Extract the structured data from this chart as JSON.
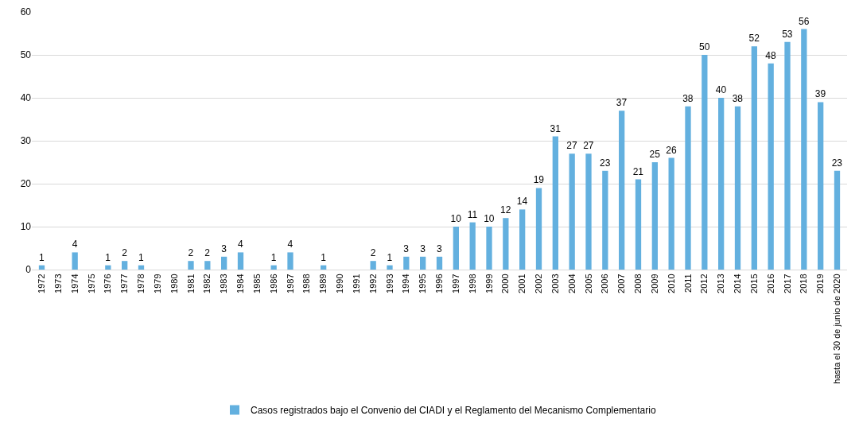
{
  "chart_data": {
    "type": "bar",
    "categories": [
      "1972",
      "1973",
      "1974",
      "1975",
      "1976",
      "1977",
      "1978",
      "1979",
      "1980",
      "1981",
      "1982",
      "1983",
      "1984",
      "1985",
      "1986",
      "1987",
      "1988",
      "1989",
      "1990",
      "1991",
      "1992",
      "1993",
      "1994",
      "1995",
      "1996",
      "1997",
      "1998",
      "1999",
      "2000",
      "2001",
      "2002",
      "2003",
      "2004",
      "2005",
      "2006",
      "2007",
      "2008",
      "2009",
      "2010",
      "2011",
      "2012",
      "2013",
      "2014",
      "2015",
      "2016",
      "2017",
      "2018",
      "2019",
      "hasta el 30 de junio de 2020"
    ],
    "series": [
      {
        "name": "Casos registrados bajo el Convenio del CIADI y el Reglamento del Mecanismo Complementario",
        "color": "#63b0df",
        "values": [
          1,
          null,
          4,
          null,
          1,
          2,
          1,
          null,
          null,
          2,
          2,
          3,
          4,
          null,
          1,
          4,
          null,
          1,
          null,
          null,
          2,
          1,
          3,
          3,
          3,
          10,
          11,
          10,
          12,
          14,
          19,
          31,
          27,
          27,
          23,
          37,
          21,
          25,
          26,
          38,
          50,
          40,
          38,
          52,
          48,
          53,
          56,
          39,
          23
        ]
      }
    ],
    "ylim": [
      0,
      60
    ],
    "yticks": [
      0,
      10,
      20,
      30,
      40,
      50,
      60
    ],
    "grid": "y",
    "legend": "bottom",
    "data_labels": true
  }
}
